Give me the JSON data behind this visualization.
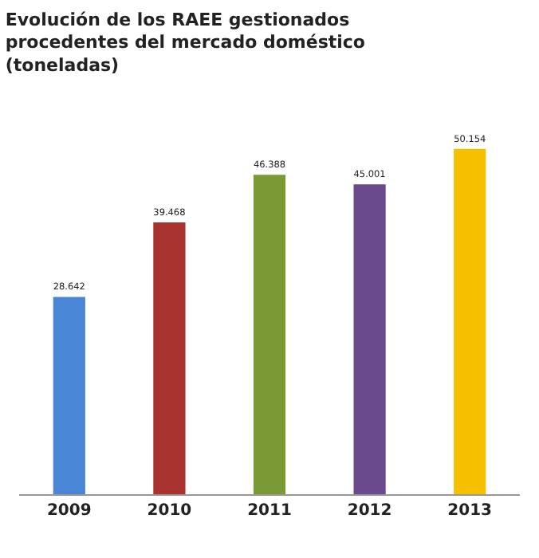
{
  "chart_data": {
    "type": "bar",
    "title": "Evolución de los RAEE gestionados\nprocedentes del mercado doméstico\n(toneladas)",
    "categories": [
      "2009",
      "2010",
      "2011",
      "2012",
      "2013"
    ],
    "values": [
      28642,
      39468,
      46388,
      45001,
      50154
    ],
    "value_labels": [
      "28.642",
      "39.468",
      "46.388",
      "45.001",
      "50.154"
    ],
    "colors": [
      "#4a86d6",
      "#a8322e",
      "#7a9a35",
      "#6a4a8c",
      "#f5c000"
    ]
  }
}
